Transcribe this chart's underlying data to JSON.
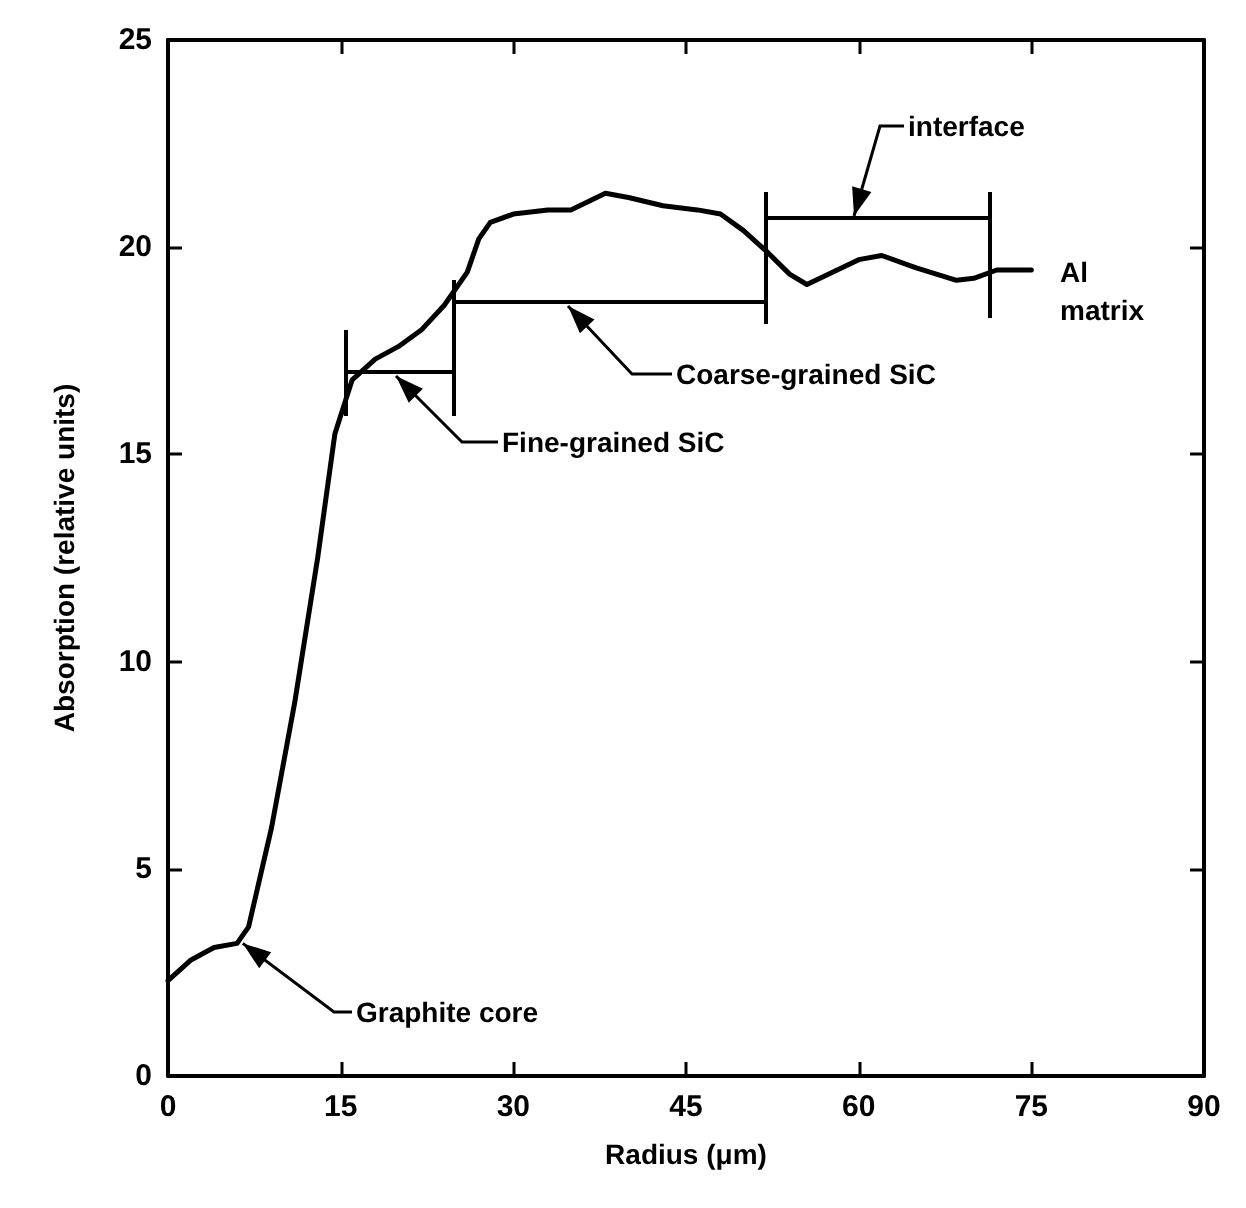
{
  "chart_data": {
    "type": "line",
    "xlabel": "Radius (μm)",
    "ylabel": "Absorption (relative units)",
    "x": [
      0,
      2,
      4,
      6,
      7,
      9,
      11,
      13,
      14.5,
      16,
      18,
      20,
      22,
      24,
      26,
      27,
      28,
      30,
      33,
      35,
      38,
      40,
      43,
      46,
      48,
      50,
      52,
      54,
      55.5,
      57,
      60,
      62,
      65,
      68.5,
      70,
      72,
      75
    ],
    "series": [
      {
        "color": "#000000",
        "values": [
          2.3,
          2.8,
          3.1,
          3.2,
          3.6,
          6,
          9,
          12.5,
          15.5,
          16.8,
          17.3,
          17.6,
          18.0,
          18.6,
          19.4,
          20.2,
          20.6,
          20.8,
          20.9,
          20.9,
          21.3,
          21.2,
          21.0,
          20.9,
          20.8,
          20.4,
          19.9,
          19.35,
          19.1,
          19.3,
          19.7,
          19.8,
          19.5,
          19.2,
          19.25,
          19.45,
          19.45
        ]
      }
    ],
    "xlim": [
      0,
      90
    ],
    "xticks": [
      0,
      15,
      30,
      45,
      60,
      75,
      90
    ],
    "ylim": [
      0,
      25
    ],
    "yticks": [
      0,
      5,
      10,
      15,
      20,
      25
    ],
    "grid": false,
    "marker": "none",
    "line_style": "solid",
    "annotations": [
      "Fine-grained SiC",
      "Coarse-grained SiC",
      "interface",
      {
        "text": "Graphite core",
        "x": 6.5,
        "y": 3.2
      },
      "Al matrix"
    ]
  }
}
